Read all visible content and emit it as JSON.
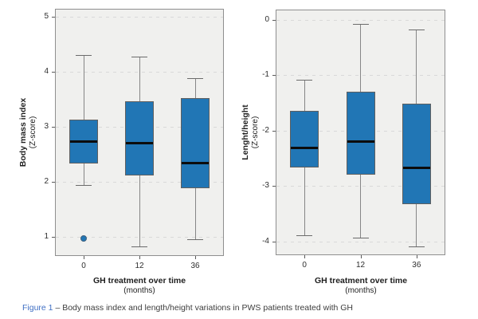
{
  "caption": {
    "label": "Figure 1",
    "rest": "– Body mass index and length/height variations in PWS patients treated with GH"
  },
  "chart_data": [
    {
      "type": "boxplot",
      "title": "",
      "ylabel_line1": "Body mass index",
      "ylabel_line2": "(Z-score)",
      "xlabel_line1": "GH treatment over time",
      "xlabel_line2": "(months)",
      "categories": [
        "0",
        "12",
        "36"
      ],
      "yticks": [
        5,
        4,
        3,
        2,
        1
      ],
      "ylim": [
        0.67,
        5.13
      ],
      "grid": "horizontal-dashed",
      "legend": "none",
      "boxes": [
        {
          "category": "0",
          "whisker_low": 1.95,
          "q1": 2.33,
          "median": 2.73,
          "q3": 3.13,
          "whisker_high": 4.31,
          "outliers": [
            0.97
          ]
        },
        {
          "category": "12",
          "whisker_low": 0.83,
          "q1": 2.12,
          "median": 2.7,
          "q3": 3.47,
          "whisker_high": 4.28,
          "outliers": []
        },
        {
          "category": "36",
          "whisker_low": 0.96,
          "q1": 1.88,
          "median": 2.34,
          "q3": 3.52,
          "whisker_high": 3.89,
          "outliers": []
        }
      ]
    },
    {
      "type": "boxplot",
      "title": "",
      "ylabel_line1": "Lenght/height",
      "ylabel_line2": "(Z-score)",
      "xlabel_line1": "GH treatment over time",
      "xlabel_line2": "(months)",
      "categories": [
        "0",
        "12",
        "36"
      ],
      "yticks": [
        0,
        -1,
        -2,
        -3,
        -4
      ],
      "ylim": [
        -4.23,
        0.17
      ],
      "grid": "horizontal-dashed",
      "legend": "none",
      "boxes": [
        {
          "category": "0",
          "whisker_low": -3.89,
          "q1": -2.66,
          "median": -2.31,
          "q3": -1.64,
          "whisker_high": -1.08,
          "outliers": []
        },
        {
          "category": "12",
          "whisker_low": -3.93,
          "q1": -2.79,
          "median": -2.19,
          "q3": -1.29,
          "whisker_high": -0.08,
          "outliers": []
        },
        {
          "category": "36",
          "whisker_low": -4.09,
          "q1": -3.33,
          "median": -2.67,
          "q3": -1.51,
          "whisker_high": -0.17,
          "outliers": []
        }
      ]
    }
  ],
  "colors": {
    "box_fill": "#2176b5",
    "box_border": "#5f5f5f",
    "median": "#0c0c0c",
    "whisker": "#868686",
    "plot_background": "#f0f0ee",
    "plot_border": "#8f8f8f",
    "gridline": "#d9d9d9",
    "caption_label": "#4170c4"
  }
}
